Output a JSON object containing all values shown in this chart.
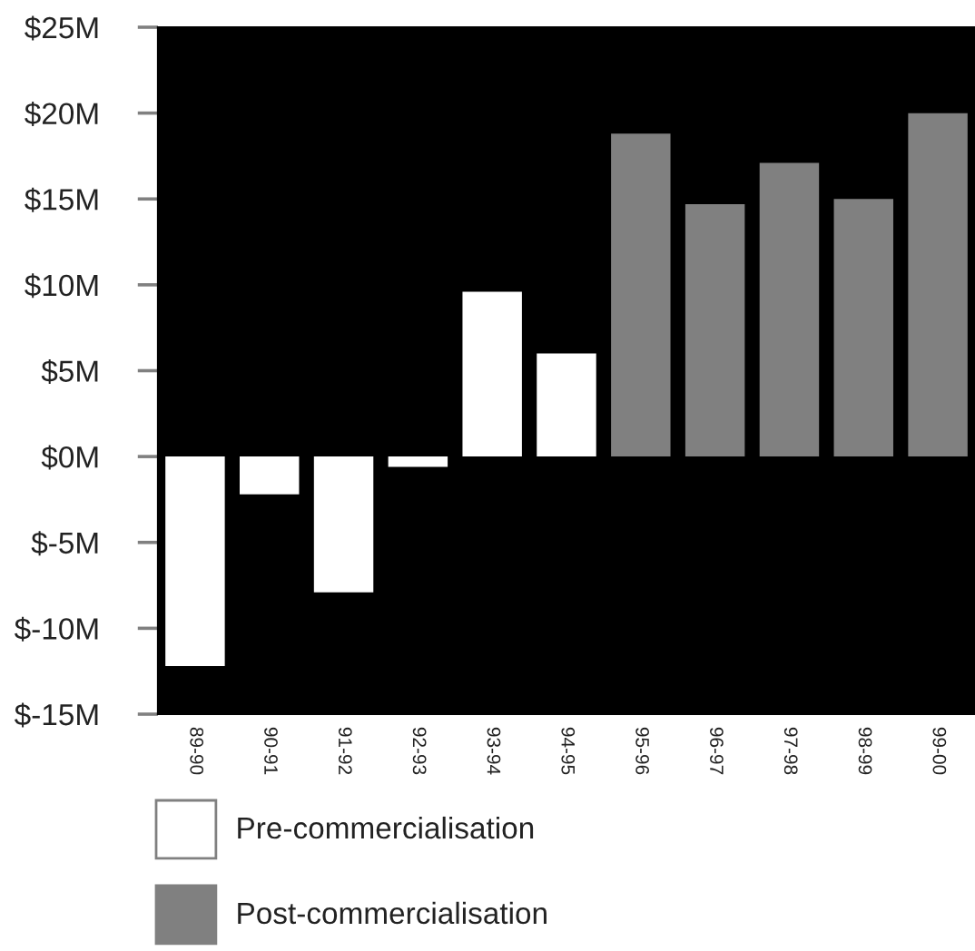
{
  "chart_data": {
    "type": "bar",
    "categories": [
      "89-90",
      "90-91",
      "91-92",
      "92-93",
      "93-94",
      "94-95",
      "95-96",
      "96-97",
      "97-98",
      "98-99",
      "99-00"
    ],
    "series": [
      {
        "name": "Pre-commercialisation",
        "color": "#ffffff",
        "values": [
          -12.2,
          -2.2,
          -7.9,
          -0.6,
          9.6,
          6.0,
          null,
          null,
          null,
          null,
          null
        ]
      },
      {
        "name": "Post-commercialisation",
        "color": "#808080",
        "values": [
          null,
          null,
          null,
          null,
          null,
          null,
          18.8,
          14.7,
          17.1,
          15.0,
          20.0
        ]
      }
    ],
    "ylim": [
      -15,
      25
    ],
    "yticks": [
      {
        "value": -15,
        "label": "$-15M"
      },
      {
        "value": -10,
        "label": "$-10M"
      },
      {
        "value": -5,
        "label": "$-5M"
      },
      {
        "value": 0,
        "label": "$0M"
      },
      {
        "value": 5,
        "label": "$5M"
      },
      {
        "value": 10,
        "label": "$10M"
      },
      {
        "value": 15,
        "label": "$15M"
      },
      {
        "value": 20,
        "label": "$20M"
      },
      {
        "value": 25,
        "label": "$25M"
      }
    ],
    "legend": "bottom"
  }
}
